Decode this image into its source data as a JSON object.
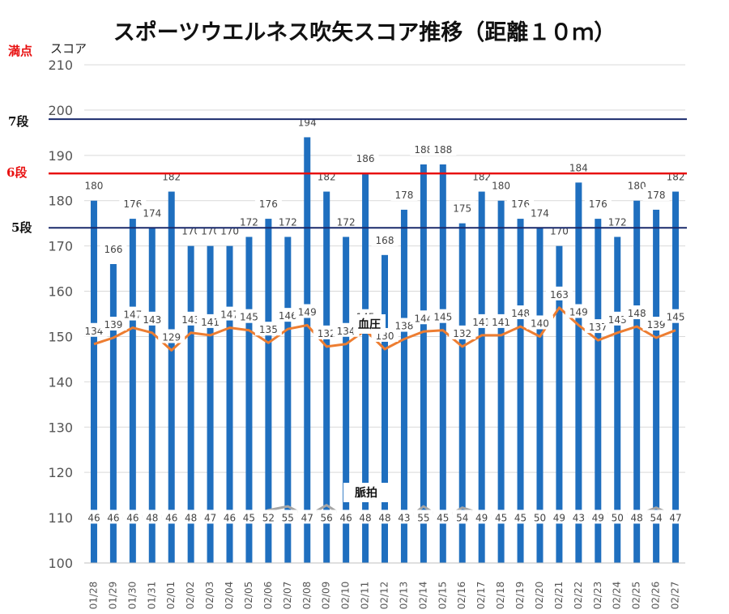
{
  "title": "スポーツウエルネス吹矢スコア推移（距離１０ｍ）",
  "y_unit": "スコア",
  "max_label": "満点",
  "rank_lines": [
    {
      "label": "7段",
      "value": 198,
      "color": "#1a2a6c"
    },
    {
      "label": "6段",
      "value": 186,
      "color": "#e81010"
    },
    {
      "label": "5段",
      "value": 174,
      "color": "#1a2a6c"
    }
  ],
  "legend": {
    "bp": "血圧",
    "pulse": "脈拍"
  },
  "colors": {
    "bars": "#1f6fbf",
    "bp_line": "#ed7d31",
    "pulse_line": "#a5a5a5"
  },
  "chart_data": {
    "type": "bar",
    "title": "スポーツウエルネス吹矢スコア推移（距離１０ｍ）",
    "ylabel": "スコア",
    "ylim": [
      100,
      210
    ],
    "yticks": [
      100,
      110,
      120,
      130,
      140,
      150,
      160,
      170,
      180,
      190,
      200,
      210
    ],
    "categories": [
      "01/28",
      "01/29",
      "01/30",
      "01/31",
      "02/01",
      "02/02",
      "02/03",
      "02/04",
      "02/05",
      "02/06",
      "02/07",
      "02/08",
      "02/09",
      "02/10",
      "02/11",
      "02/12",
      "02/13",
      "02/14",
      "02/15",
      "02/16",
      "02/17",
      "02/18",
      "02/19",
      "02/20",
      "02/21",
      "02/22",
      "02/23",
      "02/24",
      "02/25",
      "02/26",
      "02/27"
    ],
    "series": [
      {
        "values": [
          180,
          166,
          176,
          174,
          182,
          170,
          170,
          170,
          172,
          176,
          172,
          194,
          182,
          172,
          186,
          168,
          178,
          188,
          188,
          175,
          182,
          180,
          176,
          174,
          170,
          184,
          176,
          172,
          180,
          178,
          182
        ]
      },
      {
        "name": "血圧",
        "values": [
          134,
          139,
          147,
          143,
          129,
          143,
          141,
          147,
          145,
          135,
          146,
          149,
          132,
          134,
          145,
          130,
          138,
          144,
          145,
          132,
          141,
          141,
          148,
          140,
          163,
          149,
          137,
          143,
          148,
          139,
          145
        ]
      },
      {
        "name": "脈拍",
        "values": [
          46,
          46,
          46,
          48,
          46,
          48,
          47,
          46,
          45,
          52,
          55,
          47,
          56,
          46,
          48,
          48,
          43,
          55,
          45,
          54,
          49,
          45,
          45,
          50,
          49,
          43,
          49,
          50,
          48,
          54,
          47
        ]
      }
    ],
    "grid": true
  }
}
